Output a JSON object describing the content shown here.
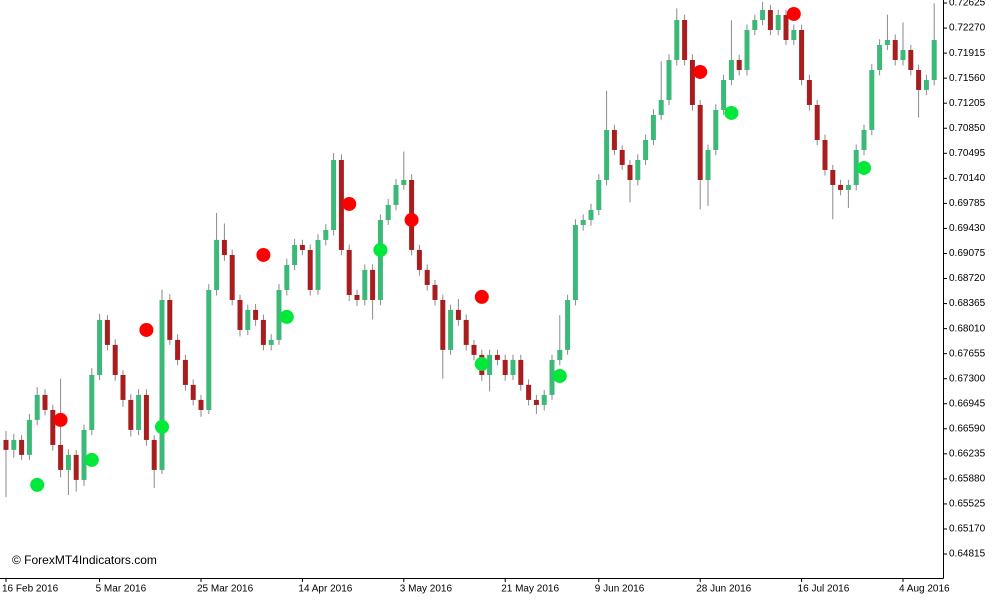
{
  "chart_data": {
    "type": "candlestick",
    "watermark": "© ForexMT4Indicators.com",
    "categories": [
      "16 Feb 2016",
      null,
      null,
      null,
      null,
      null,
      null,
      null,
      null,
      null,
      null,
      null,
      "5 Mar 2016",
      null,
      null,
      null,
      null,
      null,
      null,
      null,
      null,
      null,
      null,
      null,
      null,
      "25 Mar 2016",
      null,
      null,
      null,
      null,
      null,
      null,
      null,
      null,
      null,
      null,
      null,
      null,
      "14 Apr 2016",
      null,
      null,
      null,
      null,
      null,
      null,
      null,
      null,
      null,
      null,
      null,
      null,
      "3 May 2016",
      null,
      null,
      null,
      null,
      null,
      null,
      null,
      null,
      null,
      null,
      null,
      null,
      "21 May 2016",
      null,
      null,
      null,
      null,
      null,
      null,
      null,
      null,
      null,
      null,
      null,
      "9 Jun 2016",
      null,
      null,
      null,
      null,
      null,
      null,
      null,
      null,
      null,
      null,
      null,
      null,
      "28 Jun 2016",
      null,
      null,
      null,
      null,
      null,
      null,
      null,
      null,
      null,
      null,
      null,
      null,
      "16 Jul 2016",
      null,
      null,
      null,
      null,
      null,
      null,
      null,
      null,
      null,
      null,
      null,
      null,
      "4 Aug 2016",
      null,
      null,
      null,
      null
    ],
    "open": [
      0.66432,
      0.66291,
      0.66432,
      0.6622,
      0.66716,
      0.6707,
      0.66857,
      0.66361,
      0.66007,
      0.6622,
      0.65865,
      0.66574,
      0.67353,
      0.68133,
      0.67779,
      0.67353,
      0.66999,
      0.66574,
      0.6707,
      0.66432,
      0.66007,
      0.68416,
      0.6785,
      0.67566,
      0.67212,
      0.66999,
      0.66857,
      0.68558,
      0.69267,
      0.69054,
      0.68416,
      0.67991,
      0.68275,
      0.68133,
      0.67779,
      0.6785,
      0.68558,
      0.68912,
      0.69196,
      0.69125,
      0.68558,
      0.69267,
      0.69408,
      0.704,
      0.69125,
      0.68487,
      0.68416,
      0.68842,
      0.68416,
      0.6955,
      0.69763,
      0.70046,
      0.70117,
      0.69125,
      0.68842,
      0.68629,
      0.68416,
      0.67708,
      0.68275,
      0.68133,
      0.67779,
      0.67637,
      0.67353,
      0.67637,
      0.67566,
      0.67353,
      0.67566,
      0.67212,
      0.66999,
      0.66928,
      0.6707,
      0.67566,
      0.67708,
      0.68416,
      0.69479,
      0.6955,
      0.69692,
      0.70117,
      0.70826,
      0.70542,
      0.7033,
      0.70117,
      0.704,
      0.70684,
      0.71038,
      0.71251,
      0.71818,
      0.72385,
      0.71818,
      0.7118,
      0.70117,
      0.70542,
      0.71109,
      0.71534,
      0.71818,
      0.71676,
      0.72243,
      0.72385,
      0.72526,
      0.72243,
      0.72455,
      0.72101,
      0.72243,
      0.71534,
      0.7118,
      0.70684,
      0.70259,
      0.70046,
      0.69975,
      0.70046,
      0.70542,
      0.70826,
      0.71676,
      0.7203,
      0.72101,
      0.71818,
      0.71959,
      0.71676,
      0.71393,
      0.71534
    ],
    "high": [
      0.6656,
      0.6652,
      0.665,
      0.668,
      0.6718,
      0.6715,
      0.6693,
      0.673,
      0.663,
      0.6629,
      0.6665,
      0.6745,
      0.6822,
      0.682,
      0.6786,
      0.6742,
      0.6708,
      0.6715,
      0.6715,
      0.665,
      0.6856,
      0.685,
      0.6793,
      0.6764,
      0.6729,
      0.6707,
      0.6864,
      0.6965,
      0.695,
      0.6913,
      0.6849,
      0.6835,
      0.6836,
      0.6821,
      0.6793,
      0.6864,
      0.69,
      0.6928,
      0.6927,
      0.692,
      0.6935,
      0.6949,
      0.705,
      0.7048,
      0.692,
      0.6856,
      0.6892,
      0.6892,
      0.6963,
      0.6985,
      0.7013,
      0.7052,
      0.702,
      0.692,
      0.6892,
      0.687,
      0.6849,
      0.6835,
      0.6843,
      0.6821,
      0.6785,
      0.6771,
      0.6771,
      0.6771,
      0.6764,
      0.6764,
      0.6764,
      0.6729,
      0.6707,
      0.6714,
      0.6764,
      0.682,
      0.6849,
      0.6956,
      0.6963,
      0.6978,
      0.702,
      0.7138,
      0.709,
      0.7061,
      0.704,
      0.7048,
      0.7076,
      0.7112,
      0.718,
      0.719,
      0.7255,
      0.7246,
      0.719,
      0.7125,
      0.7062,
      0.7119,
      0.7161,
      0.7238,
      0.7189,
      0.7232,
      0.7246,
      0.7264,
      0.726,
      0.7253,
      0.7253,
      0.7232,
      0.7232,
      0.7161,
      0.7125,
      0.7076,
      0.7033,
      0.7012,
      0.7012,
      0.7062,
      0.709,
      0.7176,
      0.7211,
      0.7246,
      0.7218,
      0.7235,
      0.7203,
      0.7175,
      0.7161,
      0.7262
    ],
    "low": [
      0.6562,
      0.6618,
      0.6615,
      0.6615,
      0.6664,
      0.6678,
      0.6628,
      0.659,
      0.6565,
      0.657,
      0.6578,
      0.665,
      0.6728,
      0.677,
      0.6727,
      0.669,
      0.6648,
      0.665,
      0.6635,
      0.6575,
      0.6595,
      0.6778,
      0.6749,
      0.6713,
      0.6692,
      0.6676,
      0.668,
      0.6848,
      0.6897,
      0.6834,
      0.679,
      0.6792,
      0.6805,
      0.677,
      0.677,
      0.6778,
      0.6848,
      0.6884,
      0.6905,
      0.6848,
      0.6849,
      0.6919,
      0.6933,
      0.6905,
      0.684,
      0.6833,
      0.6834,
      0.6814,
      0.6834,
      0.6948,
      0.6969,
      0.6998,
      0.6905,
      0.6876,
      0.6855,
      0.6834,
      0.673,
      0.6764,
      0.6805,
      0.677,
      0.6756,
      0.6727,
      0.6712,
      0.6749,
      0.6727,
      0.6728,
      0.6713,
      0.6692,
      0.668,
      0.6685,
      0.67,
      0.6749,
      0.6764,
      0.6834,
      0.694,
      0.6947,
      0.6962,
      0.7004,
      0.7047,
      0.7026,
      0.698,
      0.7004,
      0.7033,
      0.7061,
      0.7097,
      0.7118,
      0.7174,
      0.7174,
      0.711,
      0.697,
      0.6975,
      0.7047,
      0.7104,
      0.7146,
      0.716,
      0.716,
      0.7217,
      0.7231,
      0.7217,
      0.7217,
      0.7203,
      0.7203,
      0.7146,
      0.711,
      0.7061,
      0.7018,
      0.6956,
      0.699,
      0.6972,
      0.6997,
      0.7047,
      0.7075,
      0.716,
      0.7196,
      0.7174,
      0.7174,
      0.716,
      0.71,
      0.7132,
      0.7146
    ],
    "close": [
      0.66291,
      0.66432,
      0.6622,
      0.66716,
      0.6707,
      0.66857,
      0.66361,
      0.66007,
      0.6622,
      0.65865,
      0.66574,
      0.67353,
      0.68133,
      0.67779,
      0.67353,
      0.66999,
      0.66574,
      0.6707,
      0.66432,
      0.66007,
      0.68416,
      0.6785,
      0.67566,
      0.67212,
      0.66999,
      0.66857,
      0.68558,
      0.69267,
      0.69054,
      0.68416,
      0.67991,
      0.68275,
      0.68133,
      0.67779,
      0.6785,
      0.68558,
      0.68912,
      0.69196,
      0.69125,
      0.68558,
      0.69267,
      0.69408,
      0.704,
      0.69125,
      0.68487,
      0.68416,
      0.68842,
      0.68416,
      0.6955,
      0.69763,
      0.70046,
      0.70117,
      0.69125,
      0.68842,
      0.68629,
      0.68416,
      0.67708,
      0.68275,
      0.68133,
      0.67779,
      0.67637,
      0.67353,
      0.67637,
      0.67566,
      0.67353,
      0.67566,
      0.67212,
      0.66999,
      0.66928,
      0.6707,
      0.67566,
      0.67708,
      0.68416,
      0.69479,
      0.6955,
      0.69692,
      0.70117,
      0.70826,
      0.70542,
      0.7033,
      0.70117,
      0.704,
      0.70684,
      0.71038,
      0.71251,
      0.71818,
      0.72385,
      0.71818,
      0.7118,
      0.70117,
      0.70542,
      0.71109,
      0.71534,
      0.71818,
      0.71676,
      0.72243,
      0.72385,
      0.72526,
      0.72243,
      0.72455,
      0.72101,
      0.72243,
      0.71534,
      0.7118,
      0.70684,
      0.70259,
      0.70046,
      0.69975,
      0.70046,
      0.70542,
      0.70826,
      0.71676,
      0.7203,
      0.72101,
      0.71818,
      0.71959,
      0.71676,
      0.71393,
      0.71534,
      0.72101
    ],
    "up_color": "#3cb878",
    "down_color": "#a81e1e",
    "wick_color": "#8a8a8a",
    "signals": [
      {
        "color": "#ff0000",
        "index": [
          7,
          18,
          33,
          44,
          52,
          61,
          89,
          101
        ],
        "values": [
          0.66716,
          0.67991,
          0.69054,
          0.69777,
          0.6955,
          0.68459,
          0.71648,
          0.7247
        ]
      },
      {
        "color": "#00e83a",
        "index": [
          4,
          11,
          20,
          36,
          48,
          61,
          71,
          93,
          110
        ],
        "values": [
          0.65795,
          0.66149,
          0.66617,
          0.68176,
          0.69125,
          0.67509,
          0.67339,
          0.71067,
          0.70287
        ]
      }
    ],
    "ylim": [
      0.64475,
      0.72668
    ],
    "yticks": [
      0.72625,
      {
        "value": 0.7227,
        "label": "0.72270"
      },
      0.71915,
      {
        "value": 0.7156,
        "label": "0.71560"
      },
      0.71205,
      {
        "value": 0.7085,
        "label": "0.70850"
      },
      0.70495,
      {
        "value": 0.7014,
        "label": "0.70140"
      },
      0.69785,
      {
        "value": 0.6943,
        "label": "0.69430"
      },
      0.69075,
      {
        "value": 0.6872,
        "label": "0.68720"
      },
      0.68365,
      {
        "value": 0.6801,
        "label": "0.68010"
      },
      0.67655,
      {
        "value": 0.673,
        "label": "0.67300"
      },
      0.66945,
      {
        "value": 0.6659,
        "label": "0.66590"
      },
      0.66235,
      {
        "value": 0.6588,
        "label": "0.65880"
      },
      0.65525,
      {
        "value": 0.6517,
        "label": "0.65170"
      },
      0.64815
    ]
  }
}
